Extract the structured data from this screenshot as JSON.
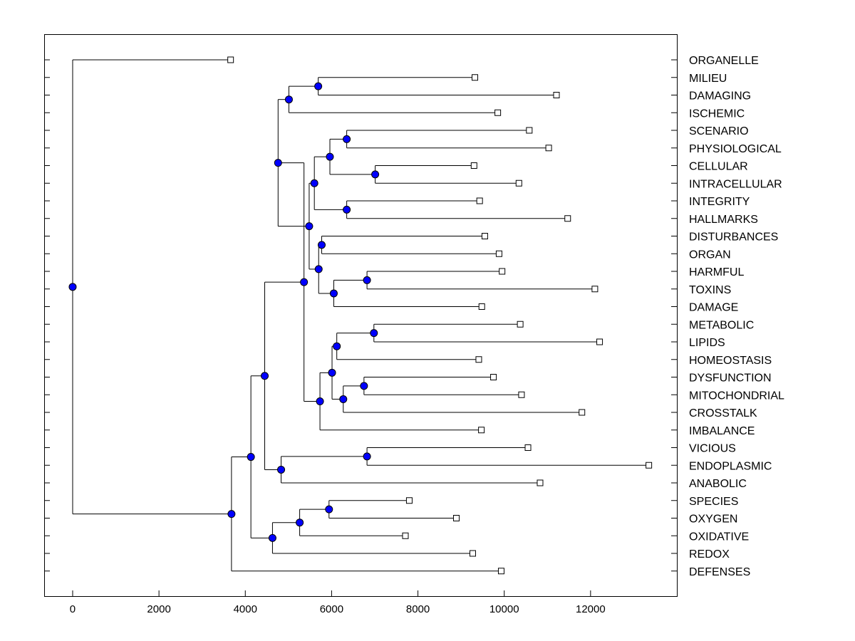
{
  "chart_data": {
    "type": "dendrogram",
    "title": "",
    "xlabel": "",
    "ylabel": "",
    "xlim": [
      -660,
      14000
    ],
    "x_ticks": [
      0,
      2000,
      4000,
      6000,
      8000,
      10000,
      12000
    ],
    "x_tick_labels": [
      "0",
      "2000",
      "4000",
      "6000",
      "8000",
      "10000",
      "12000"
    ],
    "leaves": [
      {
        "label": "ORGANELLE",
        "x": 3660
      },
      {
        "label": "MILIEU",
        "x": 9320
      },
      {
        "label": "DAMAGING",
        "x": 11210
      },
      {
        "label": "ISCHEMIC",
        "x": 9850
      },
      {
        "label": "SCENARIO",
        "x": 10580
      },
      {
        "label": "PHYSIOLOGICAL",
        "x": 11030
      },
      {
        "label": "CELLULAR",
        "x": 9300
      },
      {
        "label": "INTRACELLULAR",
        "x": 10340
      },
      {
        "label": "INTEGRITY",
        "x": 9430
      },
      {
        "label": "HALLMARKS",
        "x": 11470
      },
      {
        "label": "DISTURBANCES",
        "x": 9550
      },
      {
        "label": "ORGAN",
        "x": 9880
      },
      {
        "label": "HARMFUL",
        "x": 9950
      },
      {
        "label": "TOXINS",
        "x": 12100
      },
      {
        "label": "DAMAGE",
        "x": 9480
      },
      {
        "label": "METABOLIC",
        "x": 10370
      },
      {
        "label": "LIPIDS",
        "x": 12210
      },
      {
        "label": "HOMEOSTASIS",
        "x": 9410
      },
      {
        "label": "DYSFUNCTION",
        "x": 9750
      },
      {
        "label": "MITOCHONDRIAL",
        "x": 10400
      },
      {
        "label": "CROSSTALK",
        "x": 11800
      },
      {
        "label": "IMBALANCE",
        "x": 9470
      },
      {
        "label": "VICIOUS",
        "x": 10550
      },
      {
        "label": "ENDOPLASMIC",
        "x": 13350
      },
      {
        "label": "ANABOLIC",
        "x": 10830
      },
      {
        "label": "SPECIES",
        "x": 7800
      },
      {
        "label": "OXYGEN",
        "x": 8890
      },
      {
        "label": "OXIDATIVE",
        "x": 7710
      },
      {
        "label": "REDOX",
        "x": 9270
      },
      {
        "label": "DEFENSES",
        "x": 9930
      }
    ],
    "merges": [
      {
        "id": "n1",
        "x": 5690,
        "children": [
          "MILIEU",
          "DAMAGING"
        ]
      },
      {
        "id": "n2",
        "x": 5010,
        "children": [
          "n1",
          "ISCHEMIC"
        ]
      },
      {
        "id": "n3",
        "x": 6350,
        "children": [
          "SCENARIO",
          "PHYSIOLOGICAL"
        ]
      },
      {
        "id": "n4",
        "x": 7010,
        "children": [
          "CELLULAR",
          "INTRACELLULAR"
        ]
      },
      {
        "id": "n5",
        "x": 5960,
        "children": [
          "n3",
          "n4"
        ]
      },
      {
        "id": "n6",
        "x": 6350,
        "children": [
          "INTEGRITY",
          "HALLMARKS"
        ]
      },
      {
        "id": "n7",
        "x": 5600,
        "children": [
          "n5",
          "n6"
        ]
      },
      {
        "id": "n8",
        "x": 5770,
        "children": [
          "DISTURBANCES",
          "ORGAN"
        ]
      },
      {
        "id": "n9",
        "x": 6820,
        "children": [
          "HARMFUL",
          "TOXINS"
        ]
      },
      {
        "id": "n10",
        "x": 6050,
        "children": [
          "n9",
          "DAMAGE"
        ]
      },
      {
        "id": "n11",
        "x": 5700,
        "children": [
          "n8",
          "n10"
        ]
      },
      {
        "id": "n12",
        "x": 5480,
        "children": [
          "n7",
          "n11"
        ]
      },
      {
        "id": "n13",
        "x": 4760,
        "children": [
          "n2",
          "n12"
        ]
      },
      {
        "id": "n14",
        "x": 6980,
        "children": [
          "METABOLIC",
          "LIPIDS"
        ]
      },
      {
        "id": "n15",
        "x": 6120,
        "children": [
          "n14",
          "HOMEOSTASIS"
        ]
      },
      {
        "id": "n16",
        "x": 6750,
        "children": [
          "DYSFUNCTION",
          "MITOCHONDRIAL"
        ]
      },
      {
        "id": "n17",
        "x": 6270,
        "children": [
          "n16",
          "CROSSTALK"
        ]
      },
      {
        "id": "n18",
        "x": 6010,
        "children": [
          "n15",
          "n17"
        ]
      },
      {
        "id": "n19",
        "x": 5730,
        "children": [
          "n18",
          "IMBALANCE"
        ]
      },
      {
        "id": "n20",
        "x": 5360,
        "children": [
          "n13",
          "n19"
        ]
      },
      {
        "id": "n21",
        "x": 6820,
        "children": [
          "VICIOUS",
          "ENDOPLASMIC"
        ]
      },
      {
        "id": "n22",
        "x": 4830,
        "children": [
          "n21",
          "ANABOLIC"
        ]
      },
      {
        "id": "n23",
        "x": 4450,
        "children": [
          "n20",
          "n22"
        ]
      },
      {
        "id": "n24",
        "x": 5940,
        "children": [
          "SPECIES",
          "OXYGEN"
        ]
      },
      {
        "id": "n25",
        "x": 5260,
        "children": [
          "n24",
          "OXIDATIVE"
        ]
      },
      {
        "id": "n26",
        "x": 4630,
        "children": [
          "n25",
          "REDOX"
        ]
      },
      {
        "id": "n27",
        "x": 4130,
        "children": [
          "n23",
          "n26"
        ]
      },
      {
        "id": "n28",
        "x": 3680,
        "children": [
          "n27",
          "DEFENSES"
        ]
      },
      {
        "id": "n29",
        "x": 0,
        "children": [
          "ORGANELLE",
          "n28"
        ]
      }
    ],
    "colors": {
      "node_fill": "#0000ff",
      "line": "#000000",
      "leaf_marker_fill": "#ffffff"
    }
  }
}
